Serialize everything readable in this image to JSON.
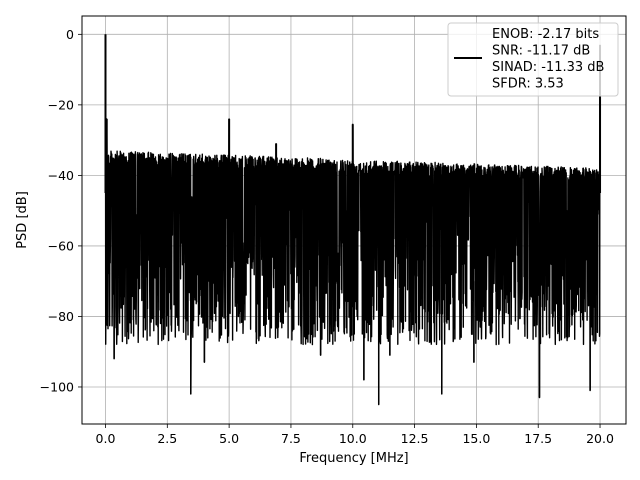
{
  "chart_data": {
    "type": "line",
    "title": "",
    "xlabel": "Frequency [MHz]",
    "ylabel": "PSD [dB]",
    "xlim": [
      -0.95,
      21.05
    ],
    "ylim": [
      -110.5,
      5.2
    ],
    "grid": true,
    "legend_position": "top-right",
    "x_ticks": [
      0.0,
      2.5,
      5.0,
      7.5,
      10.0,
      12.5,
      15.0,
      17.5,
      20.0
    ],
    "x_tick_labels": [
      "0.0",
      "2.5",
      "5.0",
      "7.5",
      "10.0",
      "12.5",
      "15.0",
      "17.5",
      "20.0"
    ],
    "y_ticks": [
      0,
      -20,
      -40,
      -60,
      -80,
      -100
    ],
    "y_tick_labels": [
      "0",
      "−20",
      "−40",
      "−60",
      "−80",
      "−100"
    ],
    "series": [
      {
        "color": "#000000",
        "x_range": [
          0.0,
          20.0
        ],
        "noise_ceiling_start": -33,
        "noise_ceiling_end": -38,
        "noise_floor_typical": -78,
        "spikes": [
          {
            "x": 0.0,
            "y": 0
          },
          {
            "x": 0.05,
            "y": -24
          },
          {
            "x": 5.0,
            "y": -24
          },
          {
            "x": 6.9,
            "y": -31
          },
          {
            "x": 10.0,
            "y": -25.5
          },
          {
            "x": 20.0,
            "y": -3
          }
        ],
        "dips": [
          {
            "x": 0.35,
            "y": -92
          },
          {
            "x": 3.45,
            "y": -102
          },
          {
            "x": 4.0,
            "y": -93
          },
          {
            "x": 8.7,
            "y": -91
          },
          {
            "x": 10.45,
            "y": -98
          },
          {
            "x": 11.05,
            "y": -105
          },
          {
            "x": 11.5,
            "y": -91
          },
          {
            "x": 13.6,
            "y": -102
          },
          {
            "x": 14.9,
            "y": -93
          },
          {
            "x": 17.55,
            "y": -103
          },
          {
            "x": 19.6,
            "y": -101
          }
        ]
      }
    ],
    "legend_entries": [
      "ENOB: -2.17 bits",
      "SNR: -11.17 dB",
      "SINAD: -11.33 dB",
      "SFDR: 3.53"
    ]
  }
}
